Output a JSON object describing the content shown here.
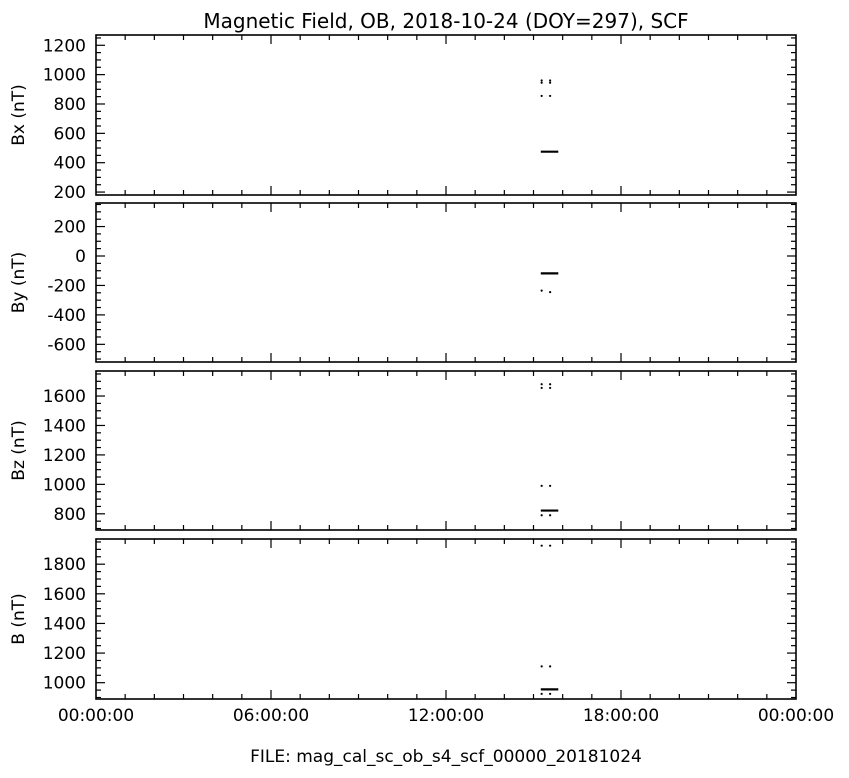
{
  "chart_data": {
    "type": "scatter",
    "title": "Magnetic Field, OB,  2018-10-24 (DOY=297), SCF",
    "footer": "FILE: mag_cal_sc_ob_s4_scf_00000_20181024",
    "xaxis": {
      "unit": "hours",
      "range": [
        0,
        24
      ],
      "tick_values": [
        0,
        6,
        12,
        18,
        24
      ],
      "tick_labels": [
        "00:00:00",
        "06:00:00",
        "12:00:00",
        "18:00:00",
        "00:00:00"
      ],
      "minor_step": 1
    },
    "panels": [
      {
        "name": "Bx",
        "ylabel": "Bx (nT)",
        "ylim": [
          180,
          1270
        ],
        "yticks": [
          200,
          400,
          600,
          800,
          1000,
          1200
        ],
        "yticks_labels": [
          "200",
          "400",
          "600",
          "800",
          "1000",
          "1200"
        ],
        "minor_step": 50,
        "points": [
          {
            "x": 15.28,
            "y": 960
          },
          {
            "x": 15.28,
            "y": 945
          },
          {
            "x": 15.57,
            "y": 960
          },
          {
            "x": 15.57,
            "y": 945
          },
          {
            "x": 15.28,
            "y": 855
          },
          {
            "x": 15.57,
            "y": 855
          }
        ],
        "segments": [
          {
            "x": [
              15.25,
              15.85
            ],
            "y": 475
          }
        ]
      },
      {
        "name": "By",
        "ylabel": "By (nT)",
        "ylim": [
          -720,
          360
        ],
        "yticks": [
          -600,
          -400,
          -200,
          0,
          200
        ],
        "yticks_labels": [
          "-600",
          "-400",
          "-200",
          "0",
          "200"
        ],
        "minor_step": 50,
        "points": [
          {
            "x": 15.28,
            "y": -235
          },
          {
            "x": 15.57,
            "y": -245
          }
        ],
        "segments": [
          {
            "x": [
              15.25,
              15.85
            ],
            "y": -118
          }
        ]
      },
      {
        "name": "Bz",
        "ylabel": "Bz (nT)",
        "ylim": [
          690,
          1770
        ],
        "yticks": [
          800,
          1000,
          1200,
          1400,
          1600
        ],
        "yticks_labels": [
          "800",
          "1000",
          "1200",
          "1400",
          "1600"
        ],
        "minor_step": 50,
        "points": [
          {
            "x": 15.28,
            "y": 1680
          },
          {
            "x": 15.28,
            "y": 1655
          },
          {
            "x": 15.57,
            "y": 1680
          },
          {
            "x": 15.57,
            "y": 1655
          },
          {
            "x": 15.28,
            "y": 990
          },
          {
            "x": 15.57,
            "y": 990
          },
          {
            "x": 15.28,
            "y": 790
          },
          {
            "x": 15.57,
            "y": 790
          }
        ],
        "segments": [
          {
            "x": [
              15.25,
              15.85
            ],
            "y": 822
          }
        ]
      },
      {
        "name": "B",
        "ylabel": "B (nT)",
        "ylim": [
          890,
          1970
        ],
        "yticks": [
          1000,
          1200,
          1400,
          1600,
          1800
        ],
        "yticks_labels": [
          "1000",
          "1200",
          "1400",
          "1600",
          "1800"
        ],
        "minor_step": 50,
        "points": [
          {
            "x": 15.28,
            "y": 1925
          },
          {
            "x": 15.57,
            "y": 1925
          },
          {
            "x": 15.28,
            "y": 1110
          },
          {
            "x": 15.57,
            "y": 1110
          },
          {
            "x": 15.28,
            "y": 925
          },
          {
            "x": 15.57,
            "y": 925
          }
        ],
        "segments": [
          {
            "x": [
              15.25,
              15.85
            ],
            "y": 955
          }
        ]
      }
    ]
  }
}
